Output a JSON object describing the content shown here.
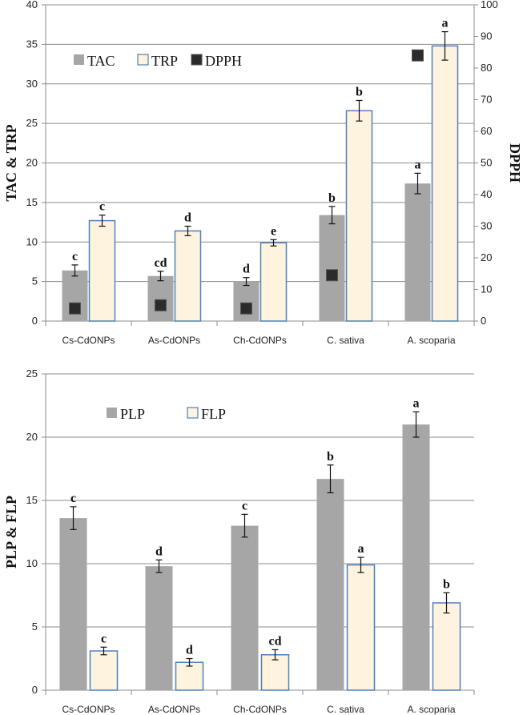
{
  "chart_data": [
    {
      "type": "bar",
      "categories": [
        "Cs-CdONPs",
        "As-CdONPs",
        "Ch-CdONPs",
        "C. sativa",
        "A. scoparia"
      ],
      "ylabel": "TAC & TRP",
      "ylim": [
        0,
        40
      ],
      "yticks": [
        0,
        5,
        10,
        15,
        20,
        25,
        30,
        35,
        40
      ],
      "y2label": "DPPH",
      "y2lim": [
        0,
        100
      ],
      "y2ticks": [
        0,
        10,
        20,
        30,
        40,
        50,
        60,
        70,
        80,
        90,
        100
      ],
      "grid": true,
      "legend_position": "top-left",
      "series": [
        {
          "name": "TAC",
          "values": [
            6.4,
            5.7,
            5.0,
            13.4,
            17.4
          ],
          "errors": [
            0.7,
            0.6,
            0.5,
            1.1,
            1.3
          ],
          "letters": [
            "c",
            "cd",
            "d",
            "b",
            "a"
          ],
          "color": "#a6a6a6",
          "axis": "left"
        },
        {
          "name": "TRP",
          "values": [
            12.7,
            11.4,
            9.9,
            26.6,
            34.8
          ],
          "errors": [
            0.7,
            0.6,
            0.4,
            1.3,
            1.8
          ],
          "letters": [
            "c",
            "d",
            "e",
            "b",
            "a"
          ],
          "color": "#fdf3de",
          "border": "#4f81bd",
          "axis": "left"
        },
        {
          "name": "DPPH",
          "values": [
            4,
            5,
            4,
            14.5,
            84
          ],
          "letters": [],
          "color": "#2b2b2b",
          "axis": "right"
        }
      ]
    },
    {
      "type": "bar",
      "categories": [
        "Cs-CdONPs",
        "As-CdONPs",
        "Ch-CdONPs",
        "C. sativa",
        "A. scoparia"
      ],
      "ylabel": "PLP & FLP",
      "ylim": [
        0,
        25
      ],
      "yticks": [
        0,
        5,
        10,
        15,
        20,
        25
      ],
      "grid": true,
      "legend_position": "top-left",
      "series": [
        {
          "name": "PLP",
          "values": [
            13.6,
            9.8,
            13.0,
            16.7,
            21.0
          ],
          "errors": [
            0.9,
            0.5,
            0.9,
            1.1,
            1.0
          ],
          "letters": [
            "c",
            "d",
            "c",
            "b",
            "a"
          ],
          "color": "#a6a6a6"
        },
        {
          "name": "FLP",
          "values": [
            3.1,
            2.2,
            2.8,
            9.9,
            6.9
          ],
          "errors": [
            0.3,
            0.3,
            0.4,
            0.6,
            0.8
          ],
          "letters": [
            "c",
            "d",
            "cd",
            "a",
            "b"
          ],
          "color": "#fdf3de",
          "border": "#4f81bd"
        }
      ]
    }
  ]
}
